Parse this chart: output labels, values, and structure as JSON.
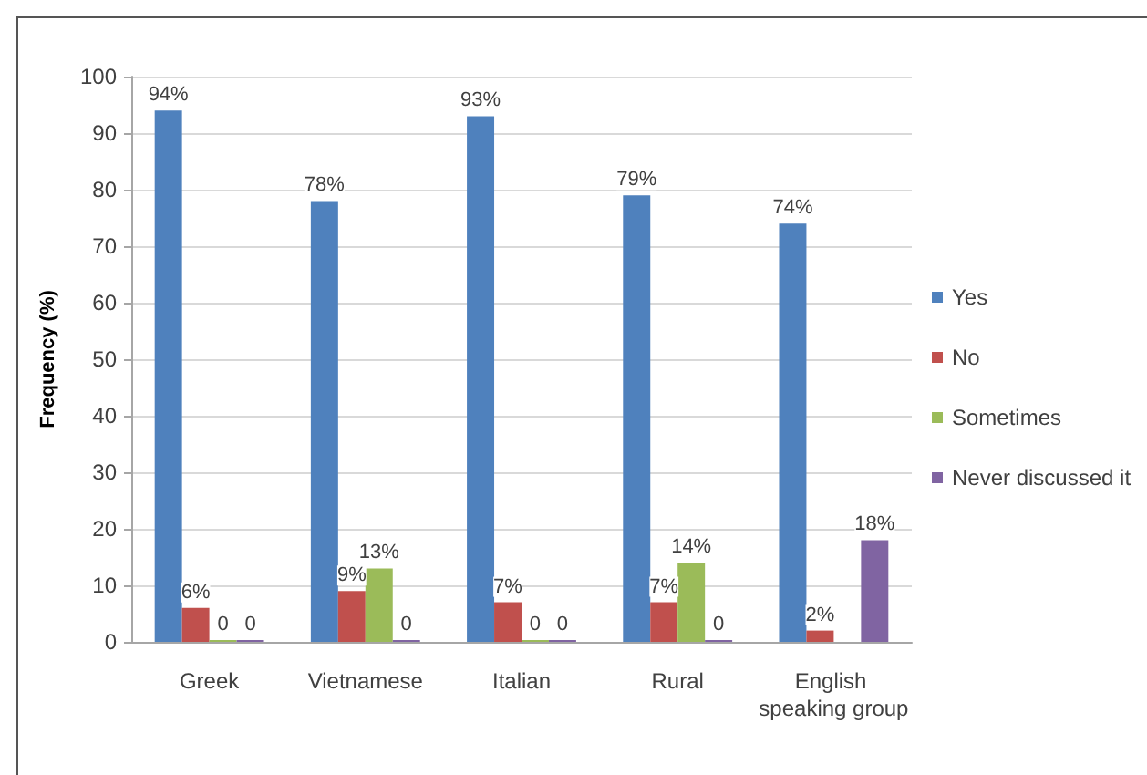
{
  "chart_data": {
    "type": "bar",
    "ylabel": "Frequency (%)",
    "categories": [
      "Greek",
      "Vietnamese",
      "Italian",
      "Rural",
      "English speaking group"
    ],
    "series": [
      {
        "name": "Yes",
        "color": "#4f81bd",
        "values": [
          94,
          78,
          93,
          79,
          74
        ],
        "value_labels": [
          "94%",
          "78%",
          "93%",
          "79%",
          "74%"
        ]
      },
      {
        "name": "No",
        "color": "#c0504d",
        "values": [
          6,
          9,
          7,
          7,
          2
        ],
        "value_labels": [
          "6%",
          "9%",
          "7%",
          "7%",
          "2%"
        ]
      },
      {
        "name": "Sometimes",
        "color": "#9bbb59",
        "values": [
          0,
          13,
          0,
          14,
          null
        ],
        "value_labels": [
          "0",
          "13%",
          "0",
          "14%",
          null
        ]
      },
      {
        "name": "Never discussed it",
        "color": "#8064a2",
        "values": [
          0,
          0,
          0,
          0,
          18
        ],
        "value_labels": [
          "0",
          "0",
          "0",
          "0",
          "18%"
        ]
      }
    ],
    "ylim": [
      0,
      100
    ],
    "yticks": [
      0,
      10,
      20,
      30,
      40,
      50,
      60,
      70,
      80,
      90,
      100
    ],
    "grid": true,
    "legend": "right"
  }
}
